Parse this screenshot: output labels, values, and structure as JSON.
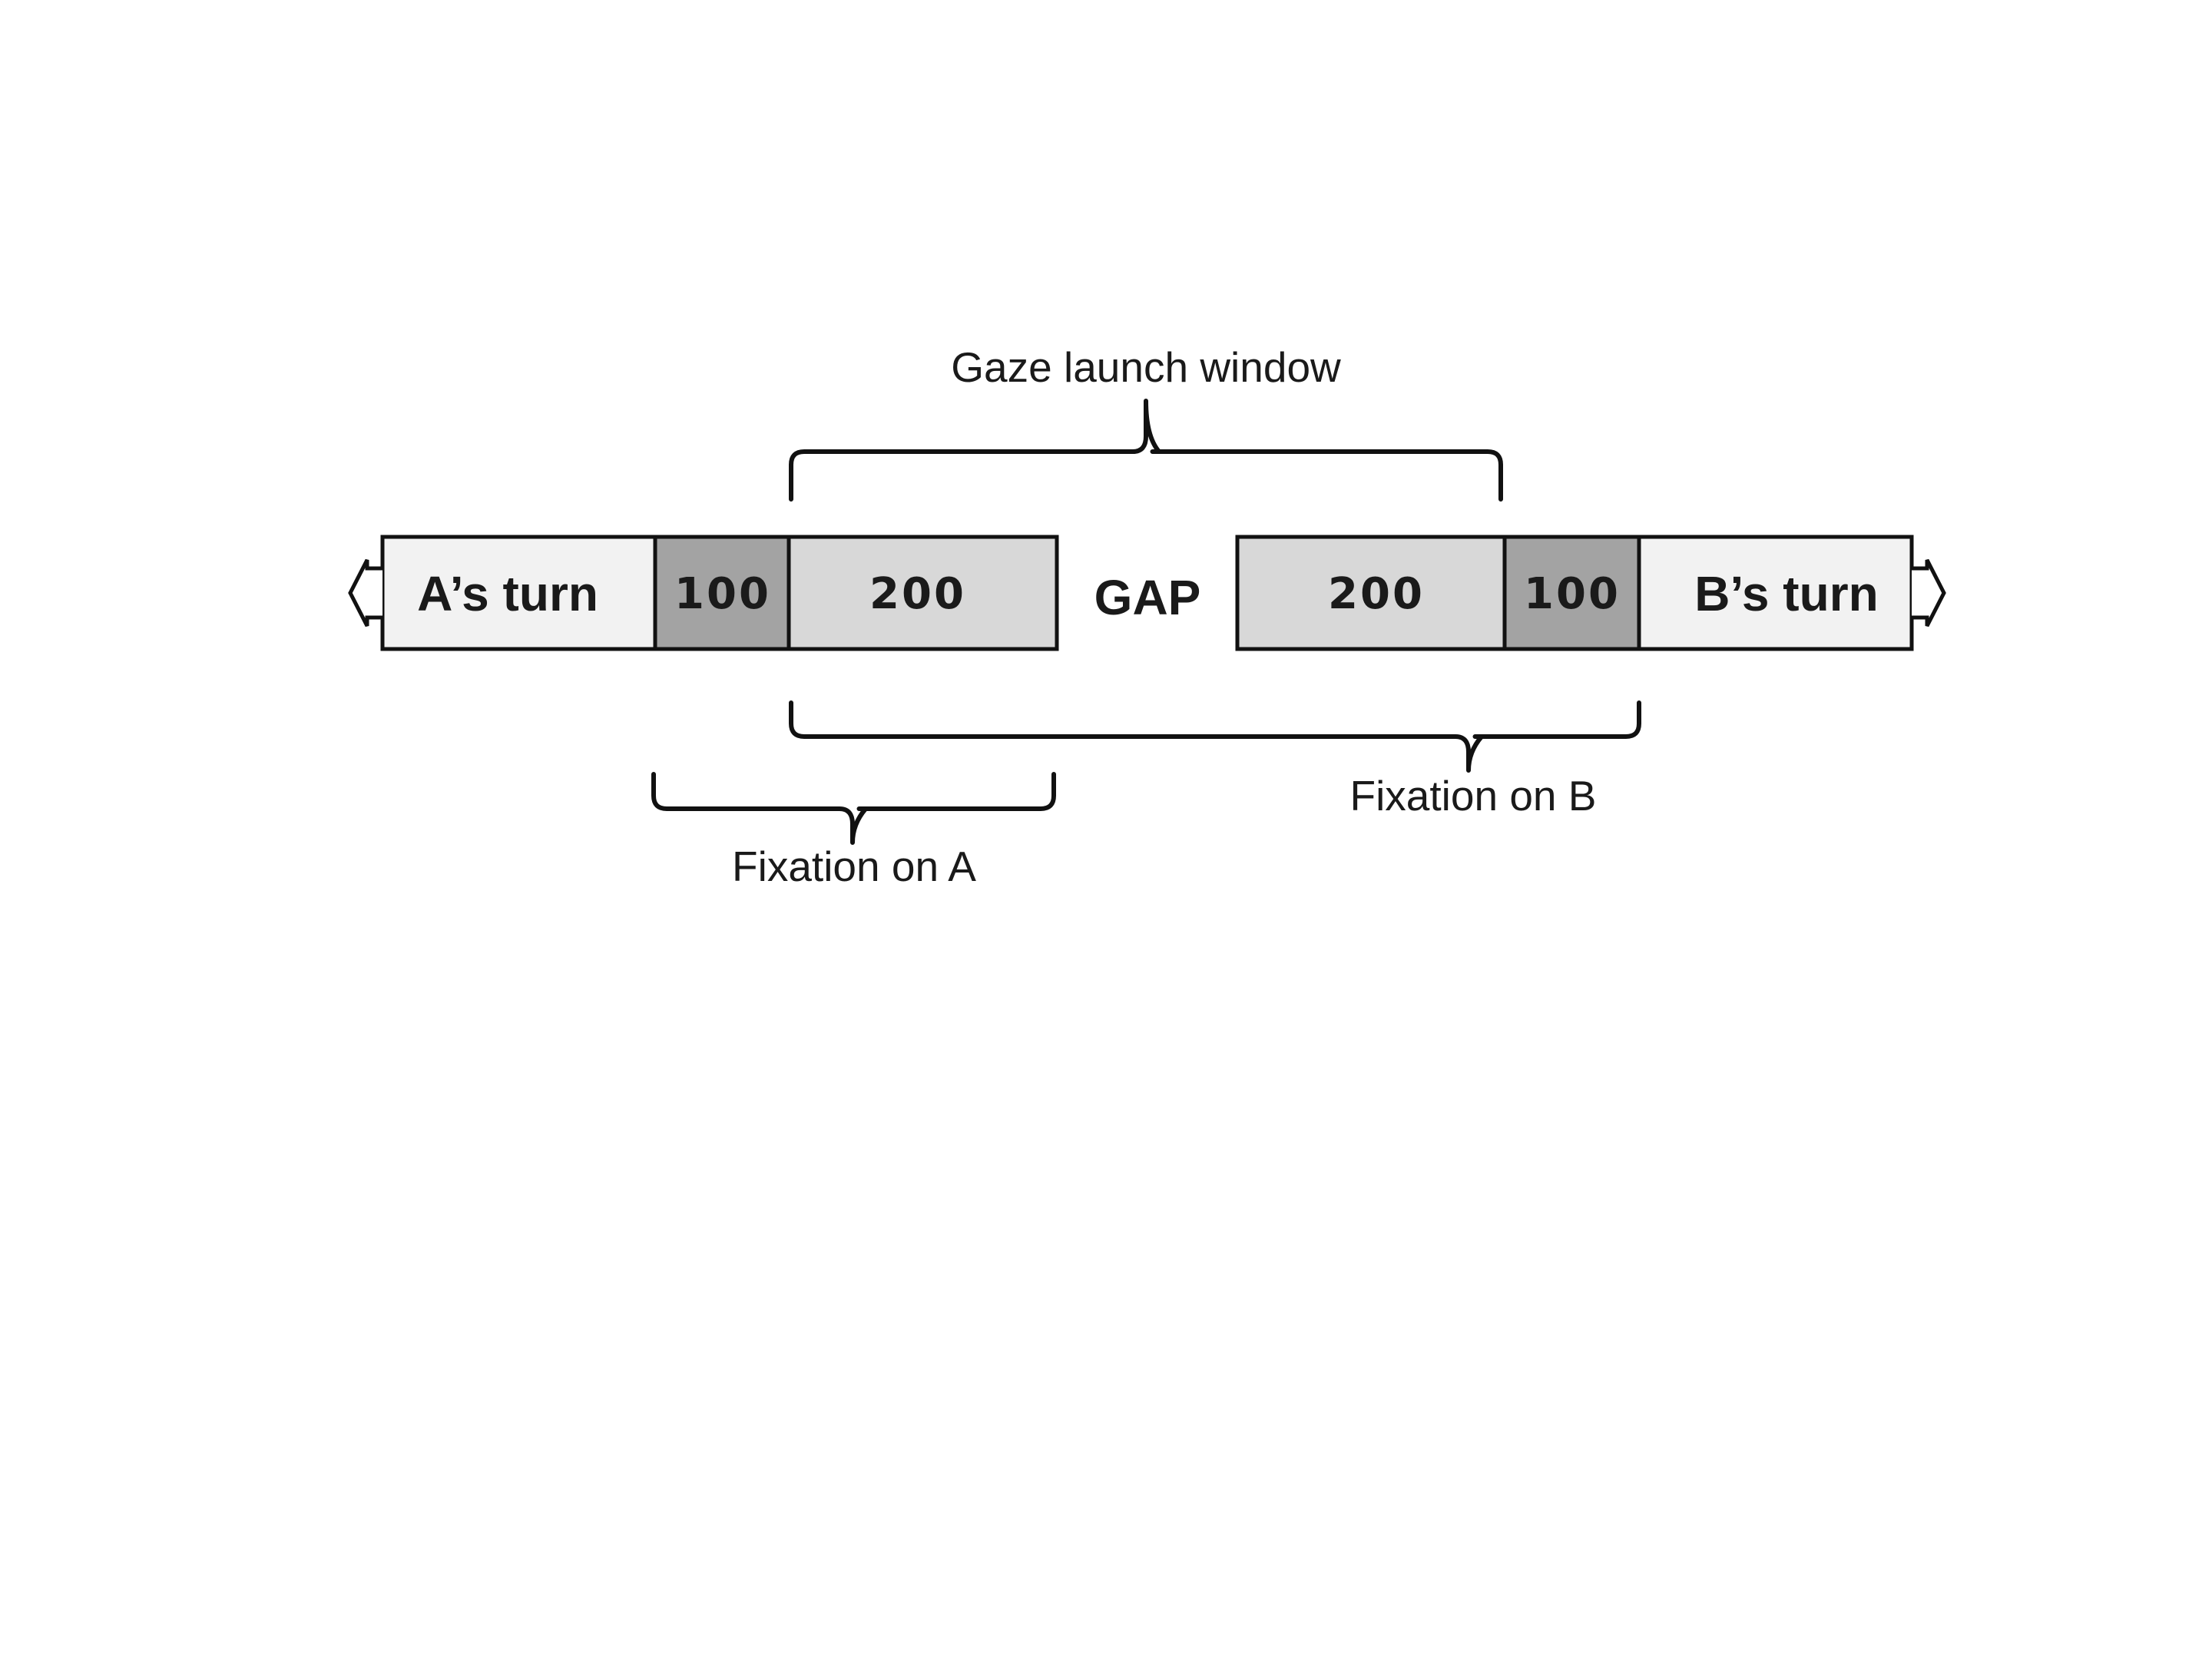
{
  "diagram": {
    "gaze_launch_window": "Gaze launch window",
    "fixation_on_a": "Fixation on A",
    "fixation_on_b": "Fixation on B",
    "gap": "GAP",
    "a_turn": "A’s turn",
    "b_turn": "B’s turn",
    "a_100": "100",
    "a_200": "200",
    "b_200": "200",
    "b_100": "100"
  },
  "colors": {
    "turn_fill": "#f2f2f2",
    "dark_fill": "#a3a3a3",
    "mid_fill": "#d8d8d8",
    "stroke": "#111111",
    "text": "#1a1a1a"
  }
}
